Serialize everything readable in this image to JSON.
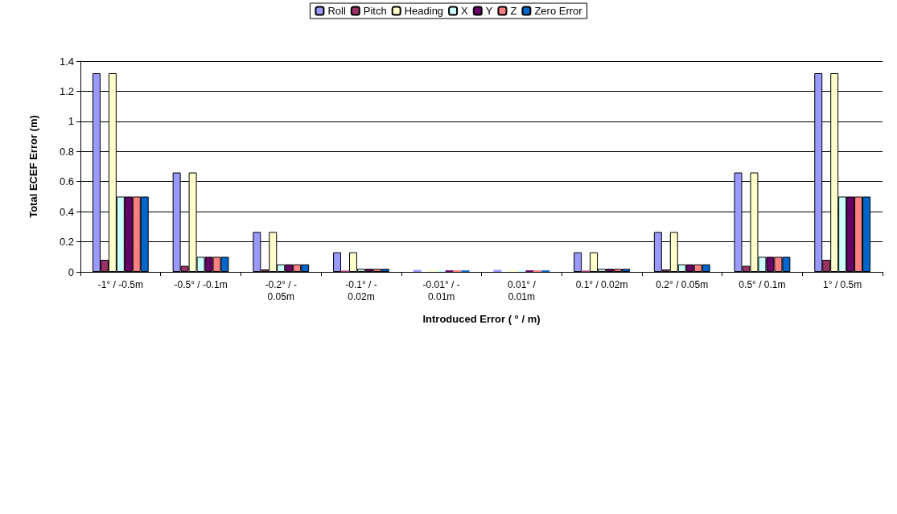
{
  "chart_data": {
    "type": "bar",
    "xlabel": "Introduced Error ( ° / m)",
    "ylabel": "Total ECEF Error (m)",
    "categories": [
      "-1° / -0.5m",
      "-0.5° / -0.1m",
      "-0.2° / -\n0.05m",
      "-0.1° / -\n0.02m",
      "-0.01° / -\n0.01m",
      "0.01° /\n0.01m",
      "0.1° / 0.02m",
      "0.2° / 0.05m",
      "0.5° / 0.1m",
      "1° / 0.5m"
    ],
    "series": [
      {
        "name": "Roll",
        "color": "#9999ff",
        "values": [
          1.32,
          0.66,
          0.265,
          0.13,
          0.013,
          0.013,
          0.13,
          0.265,
          0.66,
          1.32
        ]
      },
      {
        "name": "Pitch",
        "color": "#993366",
        "values": [
          0.08,
          0.04,
          0.016,
          0.008,
          null,
          null,
          0.008,
          0.016,
          0.04,
          0.08
        ]
      },
      {
        "name": "Heading",
        "color": "#ffffcc",
        "values": [
          1.32,
          0.66,
          0.265,
          0.13,
          0.013,
          0.013,
          0.13,
          0.265,
          0.66,
          1.32
        ]
      },
      {
        "name": "X",
        "color": "#ccffff",
        "values": [
          0.5,
          0.1,
          0.05,
          0.02,
          0.01,
          0.01,
          0.02,
          0.05,
          0.1,
          0.5
        ]
      },
      {
        "name": "Y",
        "color": "#660066",
        "values": [
          0.5,
          0.1,
          0.05,
          0.02,
          0.01,
          0.01,
          0.02,
          0.05,
          0.1,
          0.5
        ]
      },
      {
        "name": "Z",
        "color": "#ff8080",
        "values": [
          0.5,
          0.1,
          0.05,
          0.02,
          0.01,
          0.01,
          0.02,
          0.05,
          0.1,
          0.5
        ]
      },
      {
        "name": "Zero Error",
        "color": "#0066cc",
        "values": [
          0.5,
          0.1,
          0.05,
          0.02,
          0.01,
          0.01,
          0.02,
          0.05,
          0.1,
          0.5
        ]
      }
    ],
    "ylim": [
      0,
      1.4
    ],
    "yticks": [
      0,
      0.2,
      0.4,
      0.6,
      0.8,
      1,
      1.2,
      1.4
    ],
    "grid": "y",
    "legend": "top"
  }
}
